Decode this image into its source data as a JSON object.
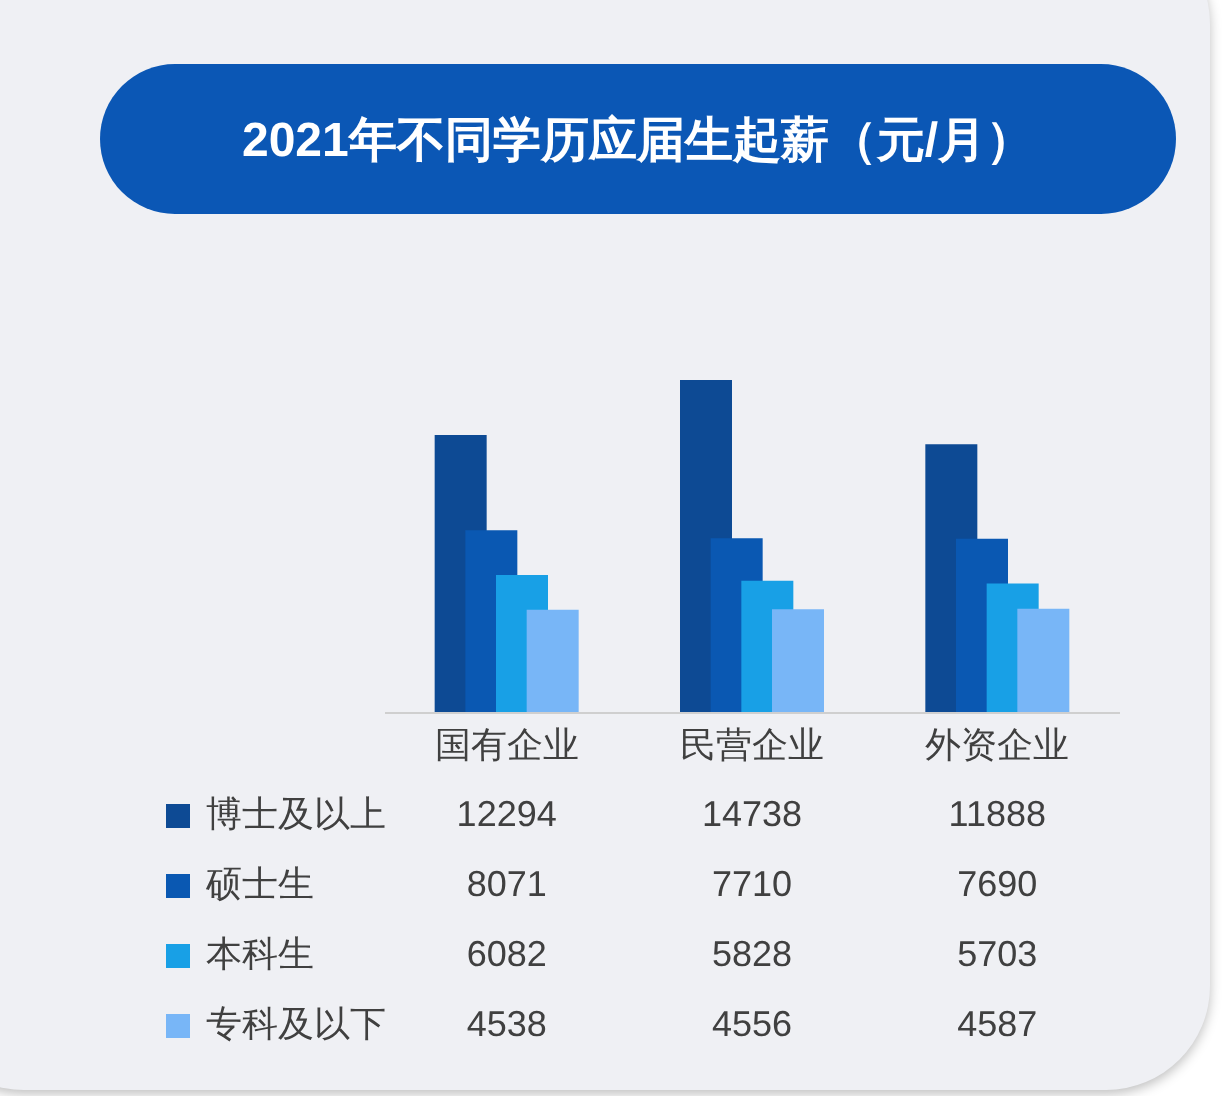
{
  "chart_data": {
    "type": "bar",
    "title": "2021年不同学历应届生起薪（元/月）",
    "categories": [
      "国有企业",
      "民营企业",
      "外资企业"
    ],
    "series": [
      {
        "name": "博士及以上",
        "color": "#0d4a94",
        "values": [
          12294,
          14738,
          11888
        ]
      },
      {
        "name": "硕士生",
        "color": "#0a58b2",
        "values": [
          8071,
          7710,
          7690
        ]
      },
      {
        "name": "本科生",
        "color": "#18a0e6",
        "values": [
          6082,
          5828,
          5703
        ]
      },
      {
        "name": "专科及以下",
        "color": "#78b6f7",
        "values": [
          4538,
          4556,
          4587
        ]
      }
    ],
    "data_labels": true,
    "legend": "bottom left"
  }
}
